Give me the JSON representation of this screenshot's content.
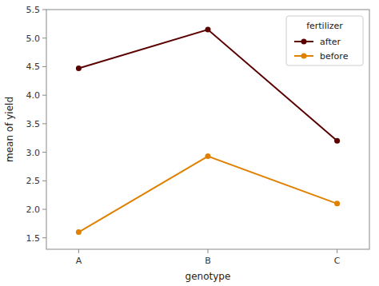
{
  "chart_data": {
    "type": "line",
    "categories": [
      "A",
      "B",
      "C"
    ],
    "series": [
      {
        "name": "after",
        "color": "#5a0000",
        "values": [
          4.47,
          5.15,
          3.2
        ],
        "marker": "circle"
      },
      {
        "name": "before",
        "color": "#e08000",
        "values": [
          1.6,
          2.93,
          2.1
        ],
        "marker": "circle"
      }
    ],
    "xlabel": "genotype",
    "ylabel": "mean of yield",
    "legend_title": "fertilizer",
    "legend": "upper right",
    "grid": false,
    "ylim": [
      1.3,
      5.5
    ],
    "yticks": [
      1.5,
      {
        "value": 2.0,
        "label": "2.0"
      },
      2.5,
      {
        "value": 3.0,
        "label": "3.0"
      },
      3.5,
      {
        "value": 4.0,
        "label": "4.0"
      },
      4.5,
      {
        "value": 5.0,
        "label": "5.0"
      },
      5.5
    ]
  }
}
